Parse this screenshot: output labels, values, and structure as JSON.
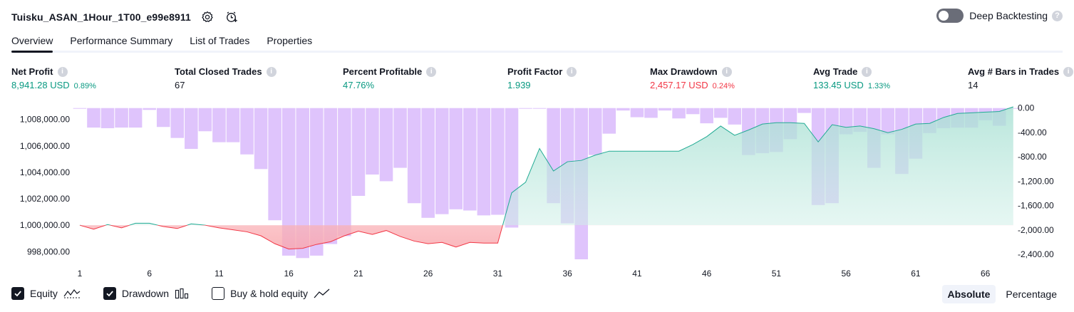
{
  "header": {
    "strategy_title": "Tuisku_ASAN_1Hour_1T00_e99e8911",
    "deep_backtesting_label": "Deep Backtesting",
    "help_glyph": "?"
  },
  "tabs": [
    {
      "label": "Overview"
    },
    {
      "label": "Performance Summary"
    },
    {
      "label": "List of Trades"
    },
    {
      "label": "Properties"
    }
  ],
  "stats": {
    "net_profit": {
      "label": "Net Profit",
      "value": "8,941.28 USD",
      "pct": "0.89%"
    },
    "total_closed_trades": {
      "label": "Total Closed Trades",
      "value": "67"
    },
    "percent_profitable": {
      "label": "Percent Profitable",
      "value": "47.76%"
    },
    "profit_factor": {
      "label": "Profit Factor",
      "value": "1.939"
    },
    "max_drawdown": {
      "label": "Max Drawdown",
      "value": "2,457.17 USD",
      "pct": "0.24%"
    },
    "avg_trade": {
      "label": "Avg Trade",
      "value": "133.45 USD",
      "pct": "1.33%"
    },
    "avg_bars": {
      "label": "Avg # Bars in Trades",
      "value": "14"
    },
    "info_glyph": "i"
  },
  "legend": {
    "equity": "Equity",
    "drawdown": "Drawdown",
    "buy_hold": "Buy & hold equity"
  },
  "mode": {
    "absolute": "Absolute",
    "percentage": "Percentage"
  },
  "colors": {
    "positive": "#089981",
    "negative": "#f23645",
    "drawdown_bar": "#dcbefc",
    "equity_line_pos": "#22ab94",
    "equity_line_neg": "#f23645",
    "equity_fill_pos": "#c5ebe3",
    "equity_fill_neg": "#fcc8ca"
  },
  "chart_data": {
    "type": "area",
    "x_ticks": [
      "1",
      "6",
      "11",
      "16",
      "21",
      "26",
      "31",
      "36",
      "41",
      "46",
      "51",
      "56",
      "61",
      "66"
    ],
    "y_left_ticks": [
      "1,008,000.00",
      "1,006,000.00",
      "1,004,000.00",
      "1,002,000.00",
      "1,000,000.00",
      "998,000.00"
    ],
    "y_left_tick_values": [
      1008000,
      1006000,
      1004000,
      1002000,
      1000000,
      998000
    ],
    "y_left_range": [
      997100,
      1008950
    ],
    "y_right_ticks": [
      "0.00",
      "-400.00",
      "-800.00",
      "-1,200.00",
      "-1,600.00",
      "-2,000.00",
      "-2,400.00"
    ],
    "y_right_tick_values": [
      0,
      -400,
      -800,
      -1200,
      -1600,
      -2000,
      -2400
    ],
    "y_right_range": [
      -2550,
      20
    ],
    "x_range": [
      0.8,
      67.5
    ],
    "series": [
      {
        "name": "Equity",
        "x": [
          1,
          2,
          3,
          4,
          5,
          6,
          7,
          8,
          9,
          10,
          11,
          12,
          13,
          14,
          15,
          16,
          17,
          18,
          19,
          20,
          21,
          22,
          23,
          24,
          25,
          26,
          27,
          28,
          29,
          30,
          31,
          32,
          33,
          34,
          35,
          36,
          37,
          38,
          39,
          40,
          41,
          42,
          43,
          44,
          45,
          46,
          47,
          48,
          49,
          50,
          51,
          52,
          53,
          54,
          55,
          56,
          57,
          58,
          59,
          60,
          61,
          62,
          63,
          64,
          65,
          66,
          67,
          68
        ],
        "values": [
          1000000,
          999700,
          1000050,
          999800,
          1000150,
          1000150,
          999900,
          999750,
          1000100,
          1000000,
          999800,
          999650,
          999500,
          999200,
          998600,
          998200,
          998250,
          998550,
          998750,
          999200,
          999550,
          999300,
          999600,
          999150,
          998800,
          998600,
          998700,
          998350,
          998700,
          998650,
          998650,
          1002450,
          1003250,
          1005800,
          1004100,
          1004800,
          1004900,
          1005300,
          1005600,
          1005600,
          1005600,
          1005600,
          1005600,
          1005600,
          1006100,
          1006700,
          1007500,
          1006800,
          1007200,
          1007650,
          1007750,
          1007750,
          1007700,
          1006300,
          1007600,
          1007400,
          1007500,
          1007300,
          1007000,
          1007250,
          1007650,
          1007700,
          1008150,
          1008450,
          1008500,
          1008550,
          1008600,
          1008950
        ]
      },
      {
        "name": "Drawdown",
        "x": [
          1,
          2,
          3,
          4,
          5,
          6,
          7,
          8,
          9,
          10,
          11,
          12,
          13,
          14,
          15,
          16,
          17,
          18,
          19,
          20,
          21,
          22,
          23,
          24,
          25,
          26,
          27,
          28,
          29,
          30,
          31,
          32,
          33,
          34,
          35,
          36,
          37,
          38,
          39,
          40,
          41,
          42,
          43,
          44,
          45,
          46,
          47,
          48,
          49,
          50,
          51,
          52,
          53,
          54,
          55,
          56,
          57,
          58,
          59,
          60,
          61,
          62,
          63,
          64,
          65,
          66,
          67,
          68
        ],
        "values": [
          -10,
          -320,
          -330,
          -320,
          -320,
          -30,
          -310,
          -490,
          -670,
          -380,
          -560,
          -560,
          -760,
          -1000,
          -1840,
          -2420,
          -2460,
          -2420,
          -2230,
          -2100,
          -1440,
          -1090,
          -1200,
          -980,
          -1560,
          -1800,
          -1740,
          -1660,
          -1680,
          -1760,
          -1750,
          -1960,
          0,
          0,
          -1560,
          -1890,
          -2480,
          -770,
          -420,
          -40,
          -150,
          -160,
          -40,
          -170,
          -100,
          -250,
          -160,
          -270,
          -770,
          -740,
          -720,
          -510,
          -80,
          -1590,
          -1560,
          -430,
          -390,
          -980,
          -430,
          -1080,
          -830,
          -410,
          -330,
          -320,
          -320,
          -200,
          -290,
          0
        ]
      }
    ]
  }
}
